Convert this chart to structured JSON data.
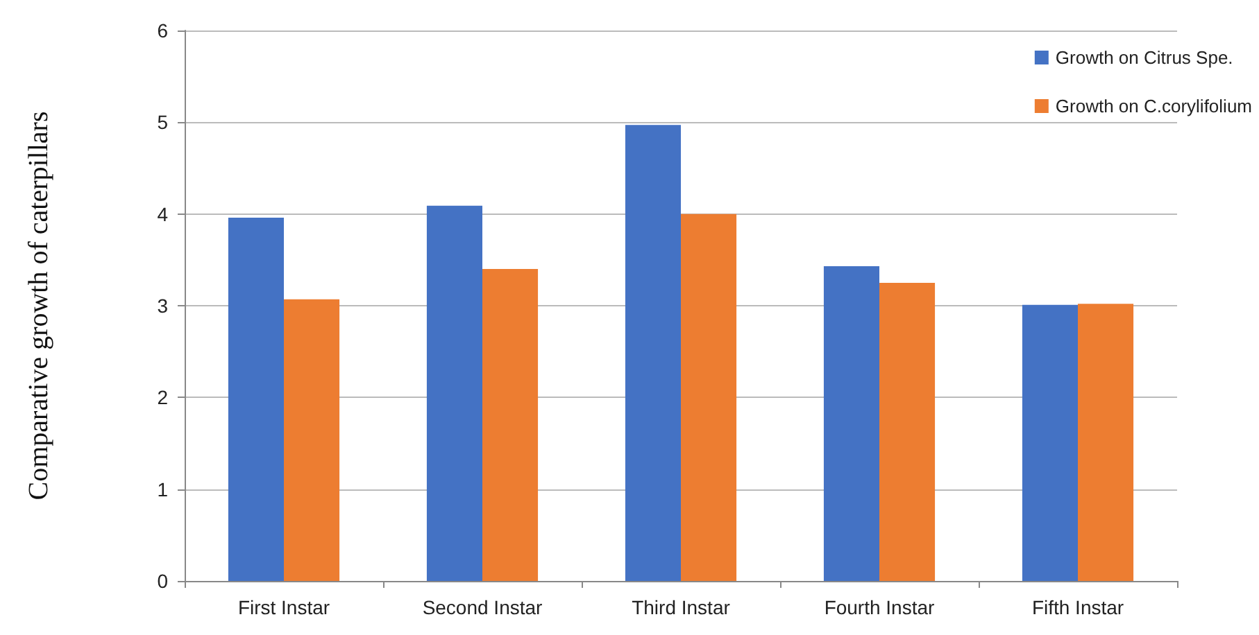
{
  "chart_data": {
    "type": "bar",
    "ylabel": "Comparative growth of caterpillars",
    "categories": [
      "First Instar",
      "Second Instar",
      "Third Instar",
      "Fourth Instar",
      "Fifth Instar"
    ],
    "series": [
      {
        "name": "Growth on Citrus Spe.",
        "color": "#4472c4",
        "values": [
          3.96,
          4.09,
          4.97,
          3.43,
          3.01
        ]
      },
      {
        "name": "Growth on C.corylifolium",
        "color": "#ed7d31",
        "values": [
          3.07,
          3.4,
          4.0,
          3.25,
          3.02
        ]
      }
    ],
    "ylim": [
      0,
      6
    ],
    "yticks": [
      0,
      1,
      2,
      3,
      4,
      5,
      6
    ],
    "grid": "y",
    "legend": "top right"
  }
}
